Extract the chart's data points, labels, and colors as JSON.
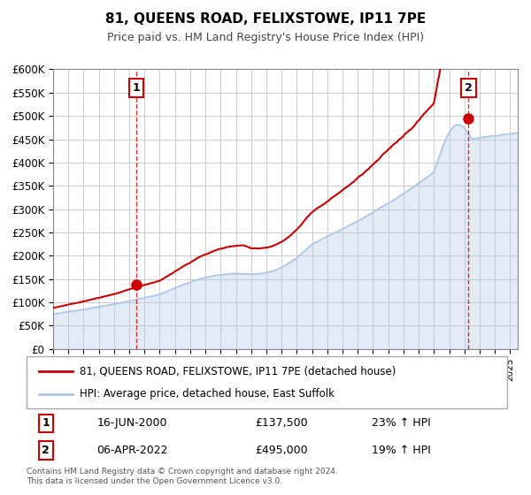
{
  "title": "81, QUEENS ROAD, FELIXSTOWE, IP11 7PE",
  "subtitle": "Price paid vs. HM Land Registry's House Price Index (HPI)",
  "ylim": [
    0,
    600000
  ],
  "xlim_start": 1995.0,
  "xlim_end": 2025.5,
  "hpi_color": "#aec6e8",
  "price_color": "#cc0000",
  "marker_color": "#cc0000",
  "grid_color": "#cccccc",
  "background_color": "#ffffff",
  "legend_label_price": "81, QUEENS ROAD, FELIXSTOWE, IP11 7PE (detached house)",
  "legend_label_hpi": "HPI: Average price, detached house, East Suffolk",
  "annotation1_date": "16-JUN-2000",
  "annotation1_price": "£137,500",
  "annotation1_pct": "23% ↑ HPI",
  "annotation1_year": 2000.46,
  "annotation1_value": 137500,
  "annotation2_date": "06-APR-2022",
  "annotation2_price": "£495,000",
  "annotation2_pct": "19% ↑ HPI",
  "annotation2_year": 2022.27,
  "annotation2_value": 495000,
  "footnote": "Contains HM Land Registry data © Crown copyright and database right 2024.\nThis data is licensed under the Open Government Licence v3.0.",
  "yticks": [
    0,
    50000,
    100000,
    150000,
    200000,
    250000,
    300000,
    350000,
    400000,
    450000,
    500000,
    550000,
    600000
  ],
  "ytick_labels": [
    "£0",
    "£50K",
    "£100K",
    "£150K",
    "£200K",
    "£250K",
    "£300K",
    "£350K",
    "£400K",
    "£450K",
    "£500K",
    "£550K",
    "£600K"
  ]
}
